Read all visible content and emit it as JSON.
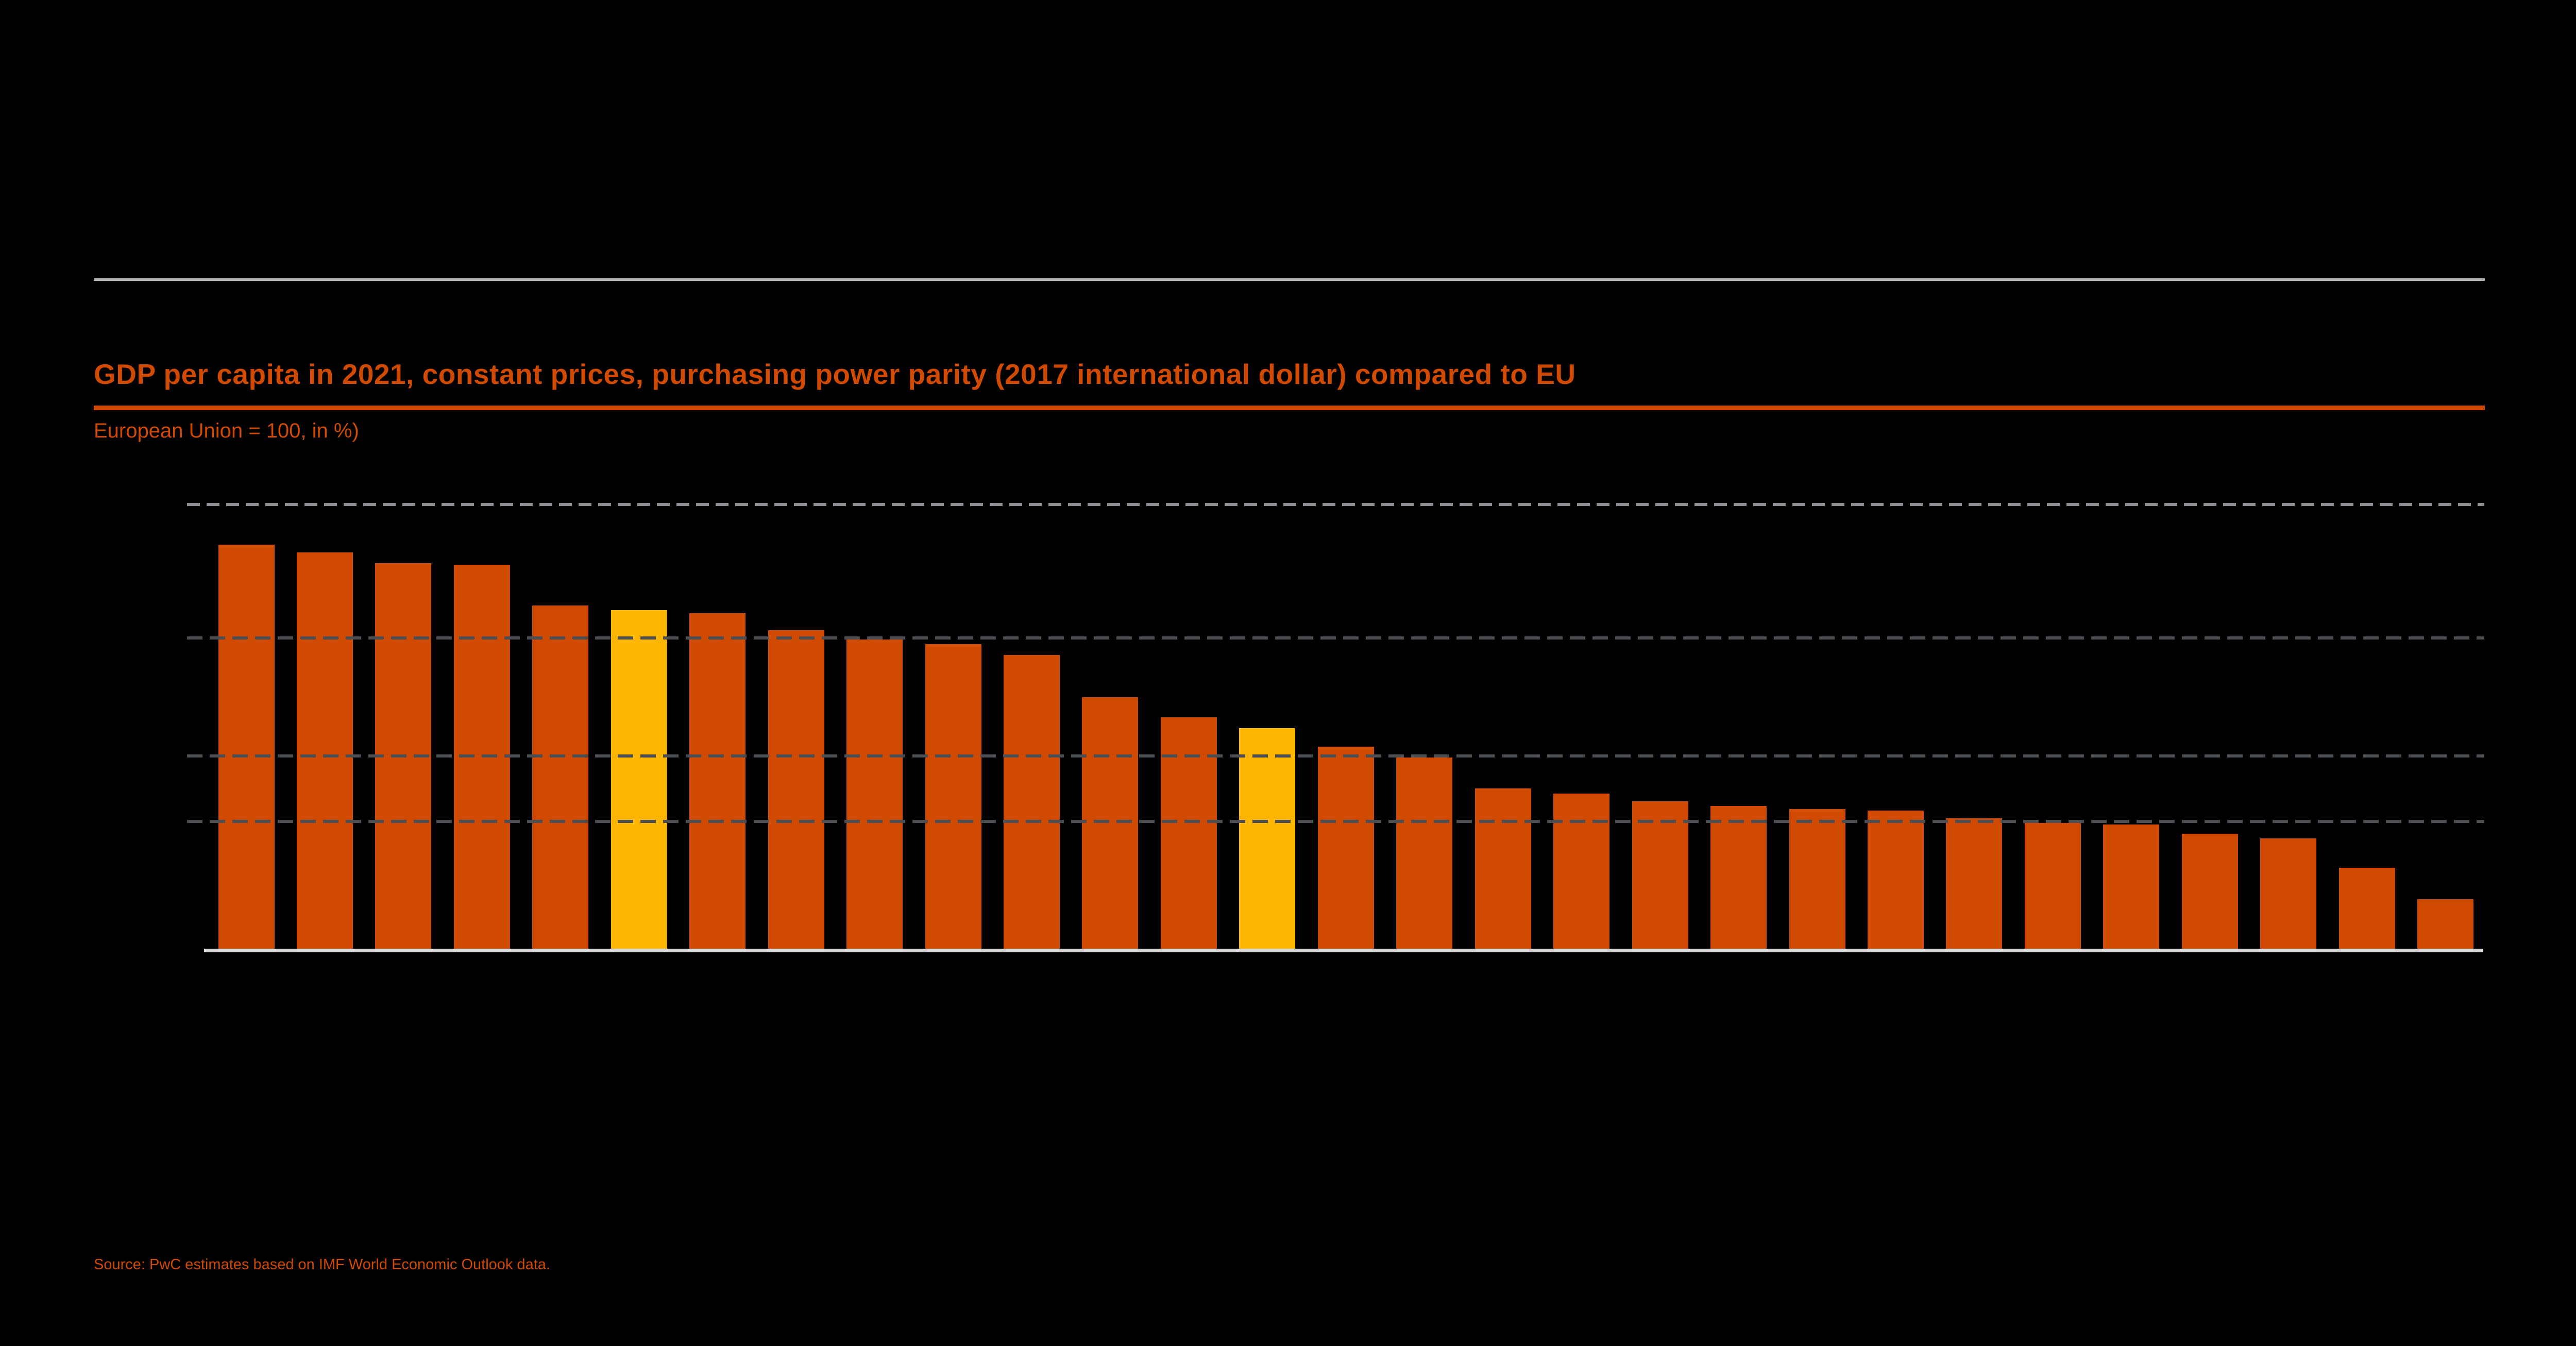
{
  "header": {
    "title": "GDP per capita in 2021, constant prices, purchasing power parity (2017 international dollar) compared to EU",
    "subtitle": "European Union = 100, in %)"
  },
  "footer": {
    "source": "Source: PwC estimates based on IMF World Economic Outlook data."
  },
  "colors": {
    "background": "#000000",
    "bar": "#D04A02",
    "highlight": "#FFB600",
    "title_text": "#D04A02",
    "subtitle_text": "#D04A02",
    "source_text": "#D04A02",
    "title_underline": "#D04A02",
    "top_rule": "#B4B4B6",
    "baseline": "#D9D9D9",
    "gridline_dark": "#4B4E52",
    "gridline_light": "#8B8D90"
  },
  "chart_data": {
    "type": "bar",
    "title": "GDP per capita in 2021, constant prices, purchasing power parity (2017 international dollar) compared to EU",
    "subtitle": "European Union = 100, in %)",
    "value_unit": "index, EU = 100, in %",
    "bar_count": 29,
    "categories_visible": false,
    "values": [
      130,
      127.5,
      124,
      123.5,
      110.5,
      109,
      108,
      102.5,
      99.5,
      98,
      94.5,
      81,
      74.5,
      71,
      65,
      61.5,
      51.5,
      50,
      47.5,
      46,
      45,
      44.5,
      42,
      40.5,
      40,
      37,
      35.5,
      26,
      16
    ],
    "highlighted_indices": [
      5,
      13
    ],
    "reference_lines": [
      {
        "value": 143,
        "style": "dashed",
        "tone": "light"
      },
      {
        "value": 100,
        "style": "dashed",
        "tone": "dark"
      },
      {
        "value": 62,
        "style": "dashed",
        "tone": "dark"
      },
      {
        "value": 41,
        "style": "dashed",
        "tone": "dark"
      }
    ],
    "ylim": [
      0,
      152
    ],
    "grid": "horizontal-dashed",
    "legend": "none",
    "note": "Bar heights and reference-line values estimated from pixel positions; no axis tick labels or category labels are visible in the screenshot."
  }
}
